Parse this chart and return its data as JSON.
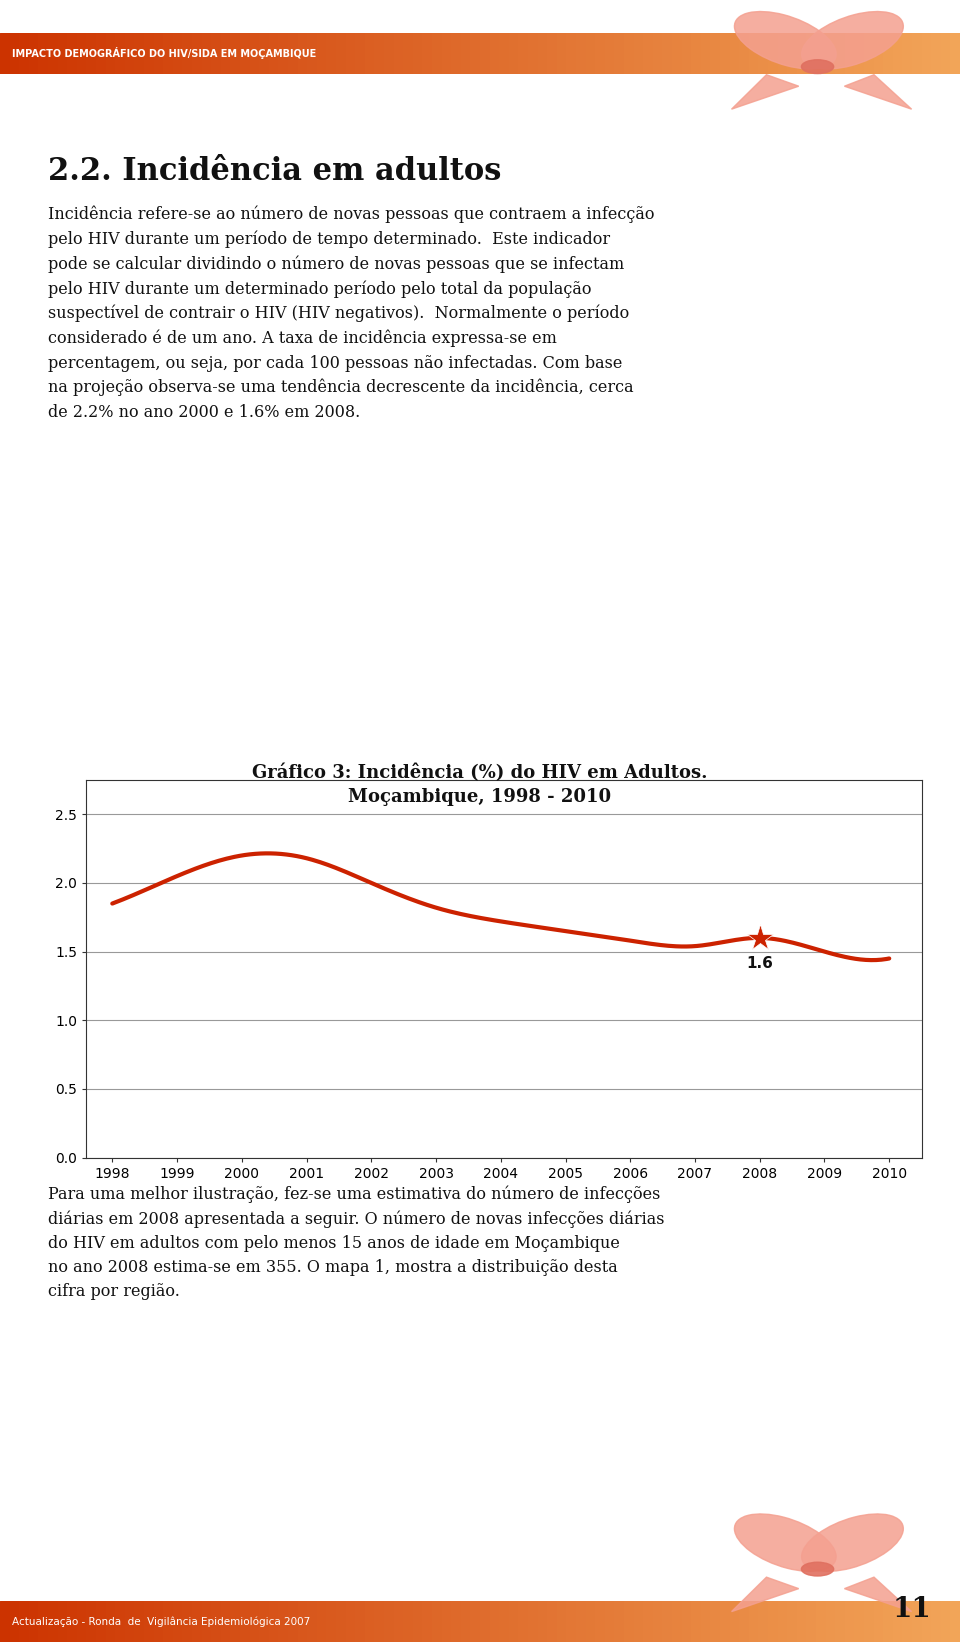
{
  "page_bg": "#ffffff",
  "header_bar_color": "#cc3300",
  "header_text": "IMPACTO DEMOGRÁFICO DO HIV/SIDA EM MOÇAMBIQUE",
  "header_text_color": "#ffffff",
  "section_title": "2.2. Incidência em adultos",
  "body_text_1": "Incidência refere-se ao número de novas pessoas que contraem a infecção\npelo HIV durante um período de tempo determinado.  Este indicador\npode se calcular dividindo o número de novas pessoas que se infectam\npelo HIV durante um determinado período pelo total da população\nsuspectível de contrair o HIV (HIV negativos).  Normalmente o período\nconsiderado é de um ano. A taxa de incidência expressa-se em\npercentagem, ou seja, por cada 100 pessoas não infectadas. Com base\nna projeção observa-se uma tendência decrescente da incidência, cerca\nde 2.2% no ano 2000 e 1.6% em 2008.",
  "chart_title_line1": "Gráfico 3: Incidência (%) do HIV em Adultos.",
  "chart_title_line2": "Moçambique, 1998 - 2010",
  "years": [
    1998,
    1999,
    2000,
    2001,
    2002,
    2003,
    2004,
    2005,
    2006,
    2007,
    2008,
    2009,
    2010
  ],
  "values": [
    1.85,
    2.05,
    2.2,
    2.18,
    2.0,
    1.82,
    1.72,
    1.65,
    1.58,
    1.54,
    1.6,
    1.5,
    1.45
  ],
  "line_color": "#cc2200",
  "line_width": 3.0,
  "marker_year": 2008,
  "marker_value": 1.6,
  "marker_label": "1.6",
  "ylim": [
    0.0,
    2.75
  ],
  "yticks": [
    0.0,
    0.5,
    1.0,
    1.5,
    2.0,
    2.5
  ],
  "grid_color": "#999999",
  "grid_linewidth": 0.8,
  "body_text_2": "Para uma melhor ilustração, fez-se uma estimativa do número de infecções\ndiárias em 2008 apresentada a seguir. O número de novas infecções diárias\ndo HIV em adultos com pelo menos 15 anos de idade em Moçambique\nno ano 2008 estima-se em 355. O mapa 1, mostra a distribuição desta\ncifra por região.",
  "footer_text": "Actualização - Ronda  de  Vigilância Epidemiológica 2007",
  "page_number": "11",
  "ytick_labels": [
    "0.0",
    "0.5",
    "1.0",
    "1.5",
    "2.0",
    "2.5"
  ]
}
